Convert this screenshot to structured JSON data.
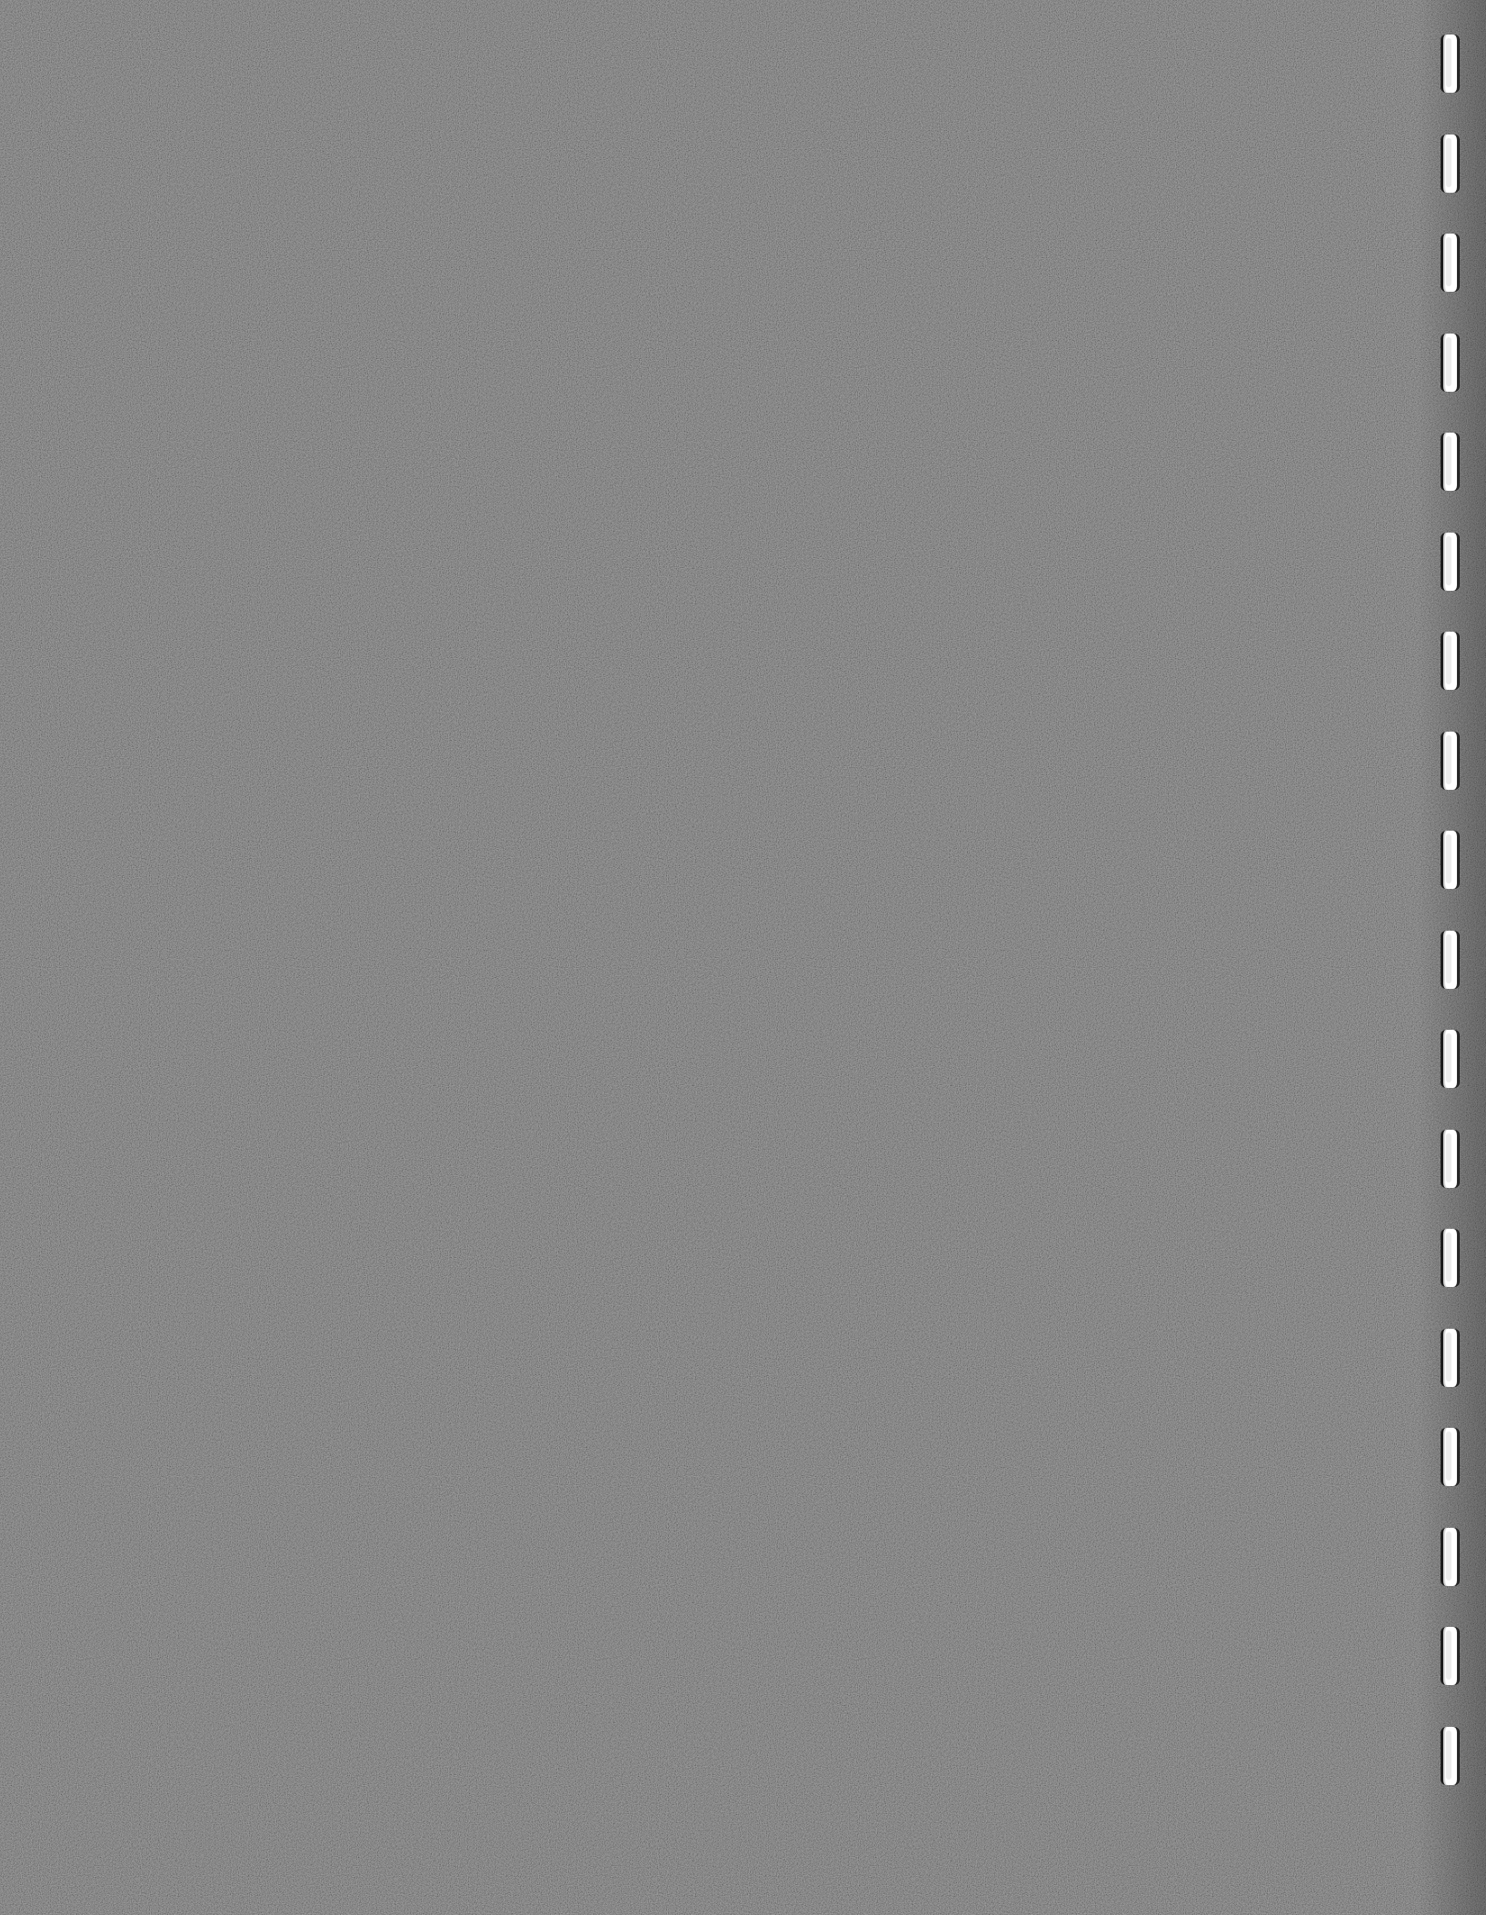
{
  "page": {
    "background_color": "#5b5b5b",
    "hole_color": "#ffffff",
    "binding_hole_count": 18
  }
}
